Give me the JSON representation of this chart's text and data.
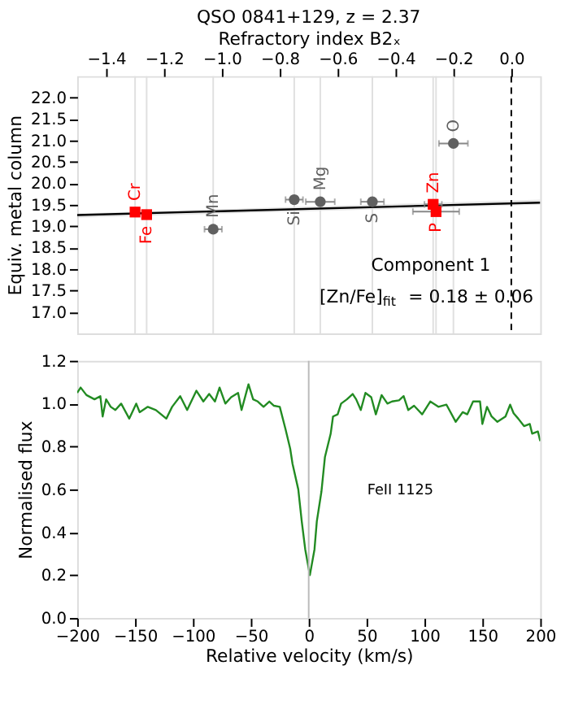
{
  "chart_data": [
    {
      "type": "scatter",
      "title": "QSO 0841+129, z = 2.37",
      "xlabel": "Refractory index B2ₓ",
      "ylabel": "Equiv. metal column",
      "xlim": [
        -1.5,
        0.1
      ],
      "xticks": [
        -1.4,
        -1.2,
        {
          "value": -1,
          "label": "−1.0"
        },
        -0.8,
        -0.6,
        -0.4,
        -0.2,
        {
          "value": 0,
          "label": "0.0"
        }
      ],
      "ylim": [
        16.5,
        22.5
      ],
      "yticks": [
        {
          "value": 17,
          "label": "17.0"
        },
        17.5,
        {
          "value": 18,
          "label": "18.0"
        },
        18.5,
        {
          "value": 19,
          "label": "19.0"
        },
        19.5,
        {
          "value": 20,
          "label": "20.0"
        },
        20.5,
        {
          "value": 21,
          "label": "21.0"
        },
        21.5,
        {
          "value": 22,
          "label": "22.0"
        }
      ],
      "annotations": [
        "Component 1",
        "[Zn/Fe]$_{fit}$ = 0.18 ± 0.06"
      ],
      "ref_lines": [
        {
          "axis": "x",
          "value": -1.3,
          "color": "#e0e0e0"
        },
        {
          "axis": "x",
          "value": -1.26,
          "color": "#e0e0e0"
        },
        {
          "axis": "x",
          "value": -1.03,
          "color": "#e0e0e0"
        },
        {
          "axis": "x",
          "value": -0.75,
          "color": "#e0e0e0"
        },
        {
          "axis": "x",
          "value": -0.66,
          "color": "#e0e0e0"
        },
        {
          "axis": "x",
          "value": -0.48,
          "color": "#e0e0e0"
        },
        {
          "axis": "x",
          "value": -0.27,
          "color": "#e0e0e0"
        },
        {
          "axis": "x",
          "value": -0.26,
          "color": "#e0e0e0"
        },
        {
          "axis": "x",
          "value": -0.2,
          "color": "#e0e0e0"
        },
        {
          "axis": "x",
          "value": 0.0,
          "color": "#000000",
          "line_style": "dashed"
        }
      ],
      "series": [
        {
          "type": "line",
          "color": "#000000",
          "x": [
            -1.5,
            0.1
          ],
          "values": [
            19.26,
            19.55
          ],
          "lower": [
            19.2,
            19.5
          ],
          "upper": [
            19.3,
            19.62
          ]
        },
        {
          "name": "Cr",
          "color": "#ff0000",
          "marker": "square",
          "x": [
            -1.3
          ],
          "values": [
            19.33
          ],
          "xerrors": [
            null
          ]
        },
        {
          "name": "Fe",
          "color": "#ff0000",
          "marker": "square",
          "x": [
            -1.26
          ],
          "values": [
            19.27
          ],
          "xerrors": [
            null
          ]
        },
        {
          "name": "Mn",
          "color": "#606060",
          "marker": "circle",
          "x": [
            -1.03
          ],
          "values": [
            18.93
          ],
          "xerrors": [
            0.03
          ]
        },
        {
          "name": "Si",
          "color": "#606060",
          "marker": "circle",
          "x": [
            -0.75
          ],
          "values": [
            19.62
          ],
          "xerrors": [
            0.03
          ]
        },
        {
          "name": "Mg",
          "color": "#606060",
          "marker": "circle",
          "x": [
            -0.66
          ],
          "values": [
            19.57
          ],
          "xerrors": [
            0.05
          ]
        },
        {
          "name": "S",
          "color": "#606060",
          "marker": "circle",
          "x": [
            -0.48
          ],
          "values": [
            19.57
          ],
          "xerrors": [
            0.04
          ]
        },
        {
          "name": "Zn",
          "color": "#ff0000",
          "marker": "square",
          "x": [
            -0.27
          ],
          "values": [
            19.51
          ],
          "xerrors": [
            0.03
          ]
        },
        {
          "name": "P",
          "color": "#ff0000",
          "marker": "square",
          "x": [
            -0.26
          ],
          "values": [
            19.34
          ],
          "xerrors": [
            0.08
          ]
        },
        {
          "name": "O",
          "color": "#606060",
          "marker": "circle",
          "x": [
            -0.2
          ],
          "values": [
            20.93
          ],
          "xerrors": [
            0.05
          ]
        }
      ]
    },
    {
      "type": "line",
      "xlabel": "Relative velocity (km/s)",
      "ylabel": "Normalised flux",
      "xlim": [
        -200,
        200
      ],
      "xticks": [
        -200,
        -150,
        -100,
        -50,
        0,
        50,
        100,
        150,
        200
      ],
      "ylim": [
        0.0,
        1.2
      ],
      "yticks": [
        {
          "value": 0,
          "label": "0.0"
        },
        0.2,
        0.4,
        0.6,
        0.8,
        {
          "value": 1,
          "label": "1.0"
        },
        1.2
      ],
      "annotations": [
        "FeII 1125"
      ],
      "ref_lines": [
        {
          "axis": "x",
          "value": 0,
          "color": "#bbbbbb"
        }
      ],
      "series": [
        {
          "color": "#228b22",
          "x": [
            -200,
            -197,
            -192,
            -185,
            -180,
            -178,
            -175,
            -171,
            -167,
            -162,
            -155,
            -149,
            -146,
            -139,
            -132,
            -123,
            -118,
            -111,
            -105,
            -97,
            -91,
            -86,
            -81,
            -77,
            -72,
            -67,
            -61,
            -58,
            -52,
            -48,
            -44,
            -39,
            -34,
            -30,
            -25,
            -20,
            -16,
            -14,
            -9,
            -6,
            -3,
            1,
            5,
            7,
            11,
            14,
            19,
            21,
            25,
            28,
            33,
            38,
            41,
            45,
            49,
            54,
            58,
            63,
            68,
            72,
            78,
            82,
            86,
            91,
            98,
            105,
            112,
            119,
            127,
            133,
            137,
            142,
            148,
            150,
            154,
            158,
            163,
            170,
            174,
            177,
            181,
            186,
            191,
            193,
            198,
            200
          ],
          "values": [
            1.05,
            1.075,
            1.04,
            1.02,
            1.035,
            0.94,
            1.02,
            0.985,
            0.97,
            1.0,
            0.93,
            1.0,
            0.96,
            0.985,
            0.97,
            0.93,
            0.985,
            1.035,
            0.97,
            1.06,
            1.01,
            1.045,
            1.01,
            1.075,
            1.0,
            1.03,
            1.05,
            0.97,
            1.09,
            1.02,
            1.01,
            0.985,
            1.01,
            0.99,
            0.985,
            0.88,
            0.79,
            0.72,
            0.6,
            0.45,
            0.32,
            0.2,
            0.32,
            0.45,
            0.59,
            0.75,
            0.86,
            0.94,
            0.95,
            1.0,
            1.02,
            1.045,
            1.02,
            0.97,
            1.05,
            1.03,
            0.95,
            1.04,
            1.0,
            1.01,
            1.015,
            1.035,
            0.97,
            0.99,
            0.95,
            1.01,
            0.985,
            0.995,
            0.915,
            0.96,
            0.95,
            1.01,
            1.01,
            0.905,
            0.985,
            0.94,
            0.915,
            0.94,
            0.995,
            0.955,
            0.93,
            0.895,
            0.905,
            0.86,
            0.87,
            0.825
          ]
        }
      ]
    }
  ]
}
